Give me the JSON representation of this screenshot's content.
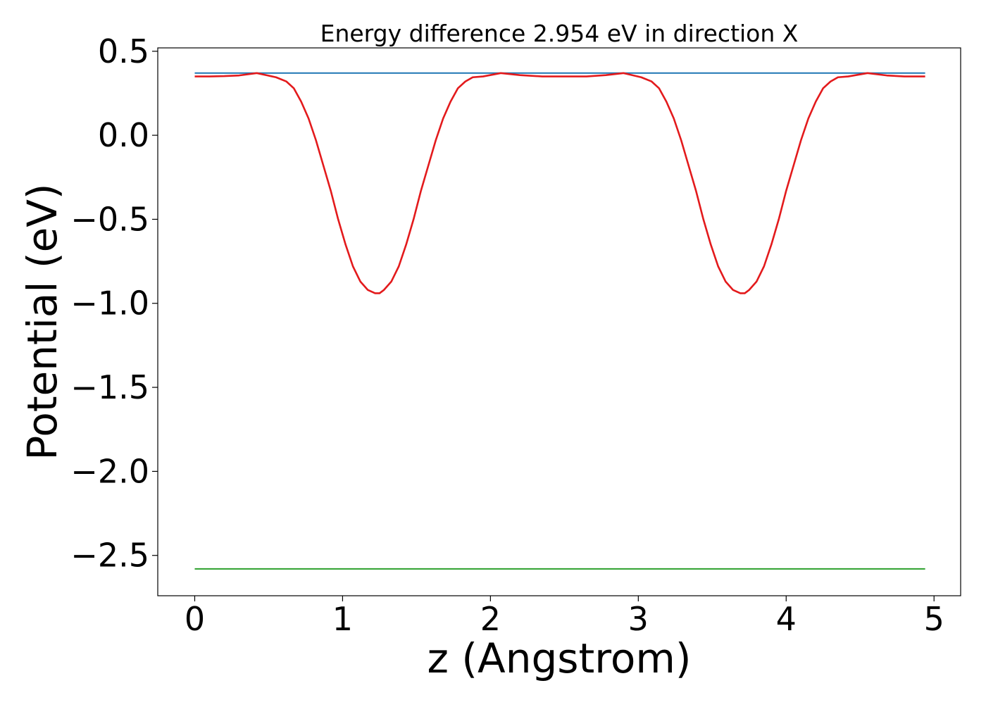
{
  "chart_data": {
    "type": "line",
    "title": "Energy difference 2.954 eV in direction X",
    "xlabel": "z (Angstrom)",
    "ylabel": "Potential (eV)",
    "xlim": [
      -0.25,
      5.18
    ],
    "ylim": [
      -2.74,
      0.52
    ],
    "xticks": [
      0,
      1,
      2,
      3,
      4,
      5
    ],
    "xtick_labels": [
      "0",
      "1",
      "2",
      "3",
      "4",
      "5"
    ],
    "yticks": [
      0.5,
      0.0,
      -0.5,
      -1.0,
      -1.5,
      -2.0,
      -2.5
    ],
    "ytick_labels": [
      "0.5",
      "0.0",
      "−0.5",
      "−1.0",
      "−1.5",
      "−2.0",
      "−2.5"
    ],
    "grid": false,
    "legend": "none",
    "series": [
      {
        "color": "#1f77b4",
        "style": "horizontal",
        "x": [
          0,
          4.94
        ],
        "y": [
          0.37,
          0.37
        ]
      },
      {
        "color": "#2ca02c",
        "style": "horizontal",
        "x": [
          0,
          4.94
        ],
        "y": [
          -2.58,
          -2.58
        ]
      },
      {
        "color": "#e31a1c",
        "style": "curve",
        "x": [
          0.0,
          0.1,
          0.2,
          0.3,
          0.42,
          0.55,
          0.62,
          0.67,
          0.72,
          0.77,
          0.82,
          0.87,
          0.92,
          0.97,
          1.02,
          1.07,
          1.12,
          1.17,
          1.22,
          1.25,
          1.28,
          1.33,
          1.38,
          1.43,
          1.48,
          1.53,
          1.58,
          1.63,
          1.68,
          1.73,
          1.78,
          1.83,
          1.88,
          1.95,
          2.07,
          2.2,
          2.35,
          2.5,
          2.65,
          2.78,
          2.9,
          3.02,
          3.09,
          3.14,
          3.19,
          3.24,
          3.29,
          3.34,
          3.39,
          3.44,
          3.49,
          3.54,
          3.59,
          3.64,
          3.69,
          3.72,
          3.75,
          3.8,
          3.85,
          3.9,
          3.95,
          4.0,
          4.05,
          4.1,
          4.15,
          4.2,
          4.25,
          4.3,
          4.35,
          4.42,
          4.55,
          4.68,
          4.8,
          4.94
        ],
        "y": [
          0.35,
          0.35,
          0.352,
          0.356,
          0.37,
          0.345,
          0.32,
          0.28,
          0.2,
          0.1,
          -0.03,
          -0.18,
          -0.33,
          -0.5,
          -0.65,
          -0.78,
          -0.87,
          -0.92,
          -0.94,
          -0.94,
          -0.92,
          -0.87,
          -0.78,
          -0.65,
          -0.5,
          -0.33,
          -0.18,
          -0.03,
          0.1,
          0.2,
          0.28,
          0.32,
          0.345,
          0.35,
          0.37,
          0.358,
          0.35,
          0.35,
          0.35,
          0.358,
          0.37,
          0.345,
          0.32,
          0.28,
          0.2,
          0.1,
          -0.03,
          -0.18,
          -0.33,
          -0.5,
          -0.65,
          -0.78,
          -0.87,
          -0.92,
          -0.94,
          -0.94,
          -0.92,
          -0.87,
          -0.78,
          -0.65,
          -0.5,
          -0.33,
          -0.18,
          -0.03,
          0.1,
          0.2,
          0.28,
          0.32,
          0.345,
          0.35,
          0.37,
          0.356,
          0.35,
          0.35
        ]
      }
    ]
  }
}
